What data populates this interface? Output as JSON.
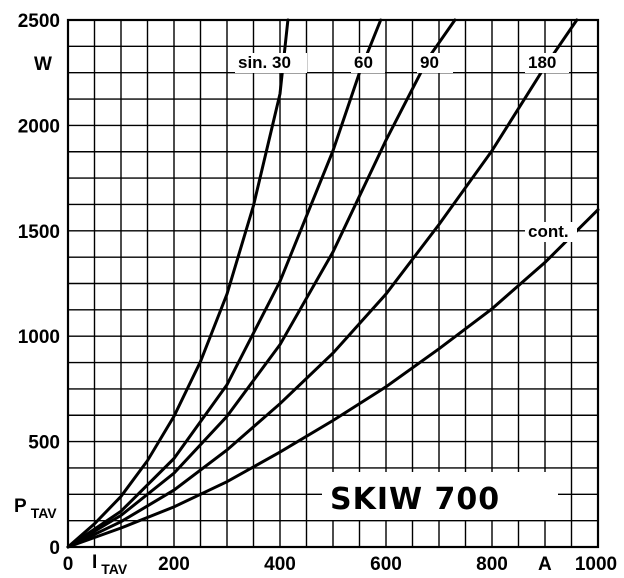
{
  "chart_data": {
    "type": "line",
    "title": "SKIW 700",
    "x_axis": {
      "symbol": "I",
      "subscript": "TAV",
      "unit": "A",
      "range": [
        0,
        1000
      ],
      "ticks": [
        0,
        200,
        400,
        600,
        800,
        1000
      ],
      "tick_labels": [
        "0",
        "200",
        "400",
        "600",
        "800",
        "1000"
      ]
    },
    "y_axis": {
      "symbol": "P",
      "subscript": "TAV",
      "unit": "W",
      "range": [
        0,
        2500
      ],
      "ticks": [
        0,
        500,
        1000,
        1500,
        2000,
        2500
      ],
      "tick_labels": [
        "0",
        "500",
        "1000",
        "1500",
        "2000",
        "2500"
      ]
    },
    "grid": true,
    "series": [
      {
        "name": "sin. 30",
        "x": [
          0,
          50,
          100,
          150,
          200,
          250,
          300,
          350,
          400,
          415
        ],
        "y": [
          0,
          110,
          240,
          410,
          620,
          880,
          1200,
          1620,
          2150,
          2500
        ]
      },
      {
        "name": "60",
        "x": [
          0,
          100,
          200,
          300,
          400,
          500,
          550,
          590
        ],
        "y": [
          0,
          170,
          420,
          770,
          1260,
          1880,
          2250,
          2500
        ]
      },
      {
        "name": "90",
        "x": [
          0,
          100,
          200,
          300,
          400,
          500,
          600,
          680,
          730
        ],
        "y": [
          0,
          150,
          350,
          620,
          960,
          1400,
          1930,
          2320,
          2500
        ]
      },
      {
        "name": "180",
        "x": [
          0,
          100,
          200,
          300,
          400,
          500,
          600,
          700,
          800,
          900,
          960
        ],
        "y": [
          0,
          120,
          270,
          460,
          680,
          920,
          1200,
          1530,
          1880,
          2280,
          2500
        ]
      },
      {
        "name": "cont.",
        "x": [
          0,
          100,
          200,
          300,
          400,
          500,
          600,
          700,
          800,
          900,
          1000
        ],
        "y": [
          0,
          90,
          190,
          310,
          450,
          600,
          760,
          940,
          1130,
          1350,
          1600
        ]
      }
    ]
  }
}
